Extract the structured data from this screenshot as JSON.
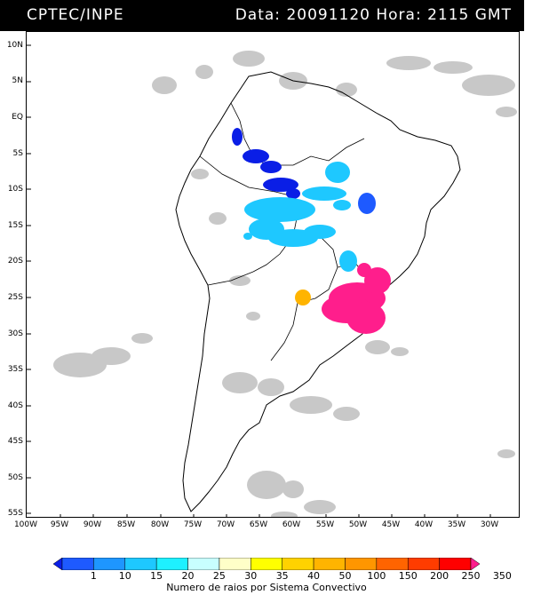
{
  "header": {
    "source": "CPTEC/INPE",
    "datetime": "Data: 20091120 Hora: 2115 GMT"
  },
  "map": {
    "lat_labels": [
      "10N",
      "5N",
      "EQ",
      "5S",
      "10S",
      "15S",
      "20S",
      "25S",
      "30S",
      "35S",
      "40S",
      "45S",
      "50S",
      "55S"
    ],
    "lon_labels": [
      "100W",
      "95W",
      "90W",
      "85W",
      "80W",
      "75W",
      "70W",
      "65W",
      "60W",
      "55W",
      "50W",
      "45W",
      "40W",
      "35W",
      "30W"
    ],
    "legend_labels": [
      "1",
      "10",
      "15",
      "20",
      "25",
      "30",
      "35",
      "40",
      "50",
      "100",
      "150",
      "200",
      "250",
      "350"
    ],
    "legend_colors": [
      "#0a1ee6",
      "#1e5aff",
      "#1e96ff",
      "#1ec8ff",
      "#1ef0ff",
      "#c8ffff",
      "#ffffc8",
      "#ffff00",
      "#ffd200",
      "#ffb400",
      "#ff9600",
      "#ff6400",
      "#ff3c00",
      "#ff0000",
      "#ff1e8c"
    ],
    "legend_title": "Numero de raios por Sistema Convectivo"
  }
}
